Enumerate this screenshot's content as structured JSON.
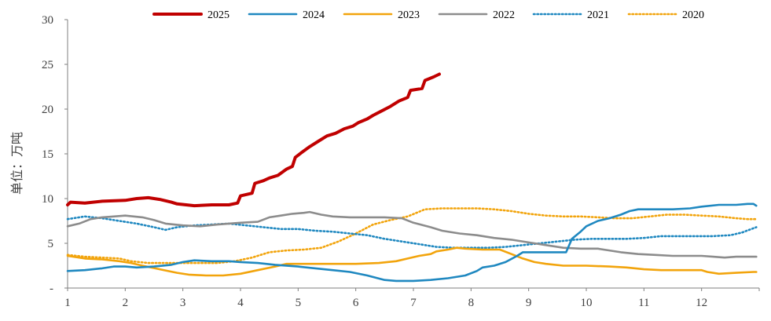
{
  "chart_data": {
    "type": "line",
    "title": "",
    "xlabel": "",
    "ylabel": "单位：万吨",
    "xlim": [
      1,
      13
    ],
    "ylim": [
      0,
      30
    ],
    "x_ticks": [
      1,
      2,
      3,
      4,
      5,
      6,
      7,
      8,
      9,
      10,
      11,
      12
    ],
    "y_ticks": [
      0,
      5,
      10,
      15,
      20,
      25,
      30
    ],
    "y_tick_labels": [
      "-",
      "5",
      "10",
      "15",
      "20",
      "25",
      "30"
    ],
    "grid": false,
    "legend_position": "top",
    "series": [
      {
        "name": "2025",
        "color": "#C00000",
        "style": "solid",
        "width": "thick",
        "points": [
          [
            1.0,
            9.3
          ],
          [
            1.05,
            9.6
          ],
          [
            1.3,
            9.5
          ],
          [
            1.6,
            9.7
          ],
          [
            2.0,
            9.8
          ],
          [
            2.2,
            10.0
          ],
          [
            2.4,
            10.1
          ],
          [
            2.6,
            9.9
          ],
          [
            2.8,
            9.6
          ],
          [
            2.9,
            9.4
          ],
          [
            3.2,
            9.2
          ],
          [
            3.5,
            9.3
          ],
          [
            3.8,
            9.3
          ],
          [
            3.95,
            9.5
          ],
          [
            4.0,
            10.3
          ],
          [
            4.2,
            10.6
          ],
          [
            4.25,
            11.7
          ],
          [
            4.4,
            12.0
          ],
          [
            4.5,
            12.3
          ],
          [
            4.65,
            12.6
          ],
          [
            4.8,
            13.3
          ],
          [
            4.9,
            13.6
          ],
          [
            4.95,
            14.6
          ],
          [
            5.05,
            15.1
          ],
          [
            5.2,
            15.8
          ],
          [
            5.35,
            16.4
          ],
          [
            5.5,
            17.0
          ],
          [
            5.65,
            17.3
          ],
          [
            5.8,
            17.8
          ],
          [
            5.95,
            18.1
          ],
          [
            6.05,
            18.5
          ],
          [
            6.2,
            18.9
          ],
          [
            6.3,
            19.3
          ],
          [
            6.45,
            19.8
          ],
          [
            6.6,
            20.3
          ],
          [
            6.75,
            20.9
          ],
          [
            6.9,
            21.3
          ],
          [
            6.95,
            22.1
          ],
          [
            7.15,
            22.3
          ],
          [
            7.2,
            23.2
          ],
          [
            7.35,
            23.6
          ],
          [
            7.45,
            23.9
          ]
        ]
      },
      {
        "name": "2024",
        "color": "#1F88C0",
        "style": "solid",
        "width": "medium",
        "points": [
          [
            1.0,
            1.9
          ],
          [
            1.3,
            2.0
          ],
          [
            1.6,
            2.2
          ],
          [
            1.8,
            2.4
          ],
          [
            2.0,
            2.4
          ],
          [
            2.2,
            2.3
          ],
          [
            2.5,
            2.4
          ],
          [
            2.8,
            2.6
          ],
          [
            3.0,
            2.9
          ],
          [
            3.2,
            3.1
          ],
          [
            3.5,
            3.0
          ],
          [
            3.8,
            3.0
          ],
          [
            4.0,
            2.9
          ],
          [
            4.3,
            2.8
          ],
          [
            4.6,
            2.6
          ],
          [
            5.0,
            2.4
          ],
          [
            5.3,
            2.2
          ],
          [
            5.6,
            2.0
          ],
          [
            5.9,
            1.8
          ],
          [
            6.2,
            1.4
          ],
          [
            6.5,
            0.9
          ],
          [
            6.7,
            0.8
          ],
          [
            7.0,
            0.8
          ],
          [
            7.3,
            0.9
          ],
          [
            7.6,
            1.1
          ],
          [
            7.9,
            1.4
          ],
          [
            8.1,
            1.9
          ],
          [
            8.2,
            2.3
          ],
          [
            8.4,
            2.5
          ],
          [
            8.6,
            2.9
          ],
          [
            8.8,
            3.6
          ],
          [
            8.9,
            4.0
          ],
          [
            9.2,
            4.0
          ],
          [
            9.5,
            4.0
          ],
          [
            9.65,
            4.0
          ],
          [
            9.75,
            5.5
          ],
          [
            9.9,
            6.3
          ],
          [
            10.0,
            6.9
          ],
          [
            10.2,
            7.5
          ],
          [
            10.4,
            7.8
          ],
          [
            10.6,
            8.2
          ],
          [
            10.75,
            8.6
          ],
          [
            10.9,
            8.8
          ],
          [
            11.2,
            8.8
          ],
          [
            11.5,
            8.8
          ],
          [
            11.8,
            8.9
          ],
          [
            12.0,
            9.1
          ],
          [
            12.3,
            9.3
          ],
          [
            12.6,
            9.3
          ],
          [
            12.8,
            9.4
          ],
          [
            12.9,
            9.4
          ],
          [
            12.95,
            9.2
          ]
        ]
      },
      {
        "name": "2023",
        "color": "#F2A40C",
        "style": "solid",
        "width": "medium",
        "points": [
          [
            1.0,
            3.6
          ],
          [
            1.3,
            3.3
          ],
          [
            1.6,
            3.2
          ],
          [
            1.9,
            3.0
          ],
          [
            2.1,
            2.8
          ],
          [
            2.3,
            2.5
          ],
          [
            2.6,
            2.1
          ],
          [
            2.9,
            1.7
          ],
          [
            3.1,
            1.5
          ],
          [
            3.4,
            1.4
          ],
          [
            3.7,
            1.4
          ],
          [
            4.0,
            1.6
          ],
          [
            4.3,
            2.0
          ],
          [
            4.6,
            2.4
          ],
          [
            4.8,
            2.7
          ],
          [
            5.2,
            2.7
          ],
          [
            5.6,
            2.7
          ],
          [
            6.0,
            2.7
          ],
          [
            6.4,
            2.8
          ],
          [
            6.7,
            3.0
          ],
          [
            6.9,
            3.3
          ],
          [
            7.1,
            3.6
          ],
          [
            7.3,
            3.8
          ],
          [
            7.4,
            4.1
          ],
          [
            7.6,
            4.3
          ],
          [
            7.75,
            4.5
          ],
          [
            7.9,
            4.4
          ],
          [
            8.2,
            4.3
          ],
          [
            8.5,
            4.3
          ],
          [
            8.7,
            3.8
          ],
          [
            8.9,
            3.3
          ],
          [
            9.1,
            2.9
          ],
          [
            9.3,
            2.7
          ],
          [
            9.6,
            2.5
          ],
          [
            10.0,
            2.5
          ],
          [
            10.4,
            2.4
          ],
          [
            10.7,
            2.3
          ],
          [
            11.0,
            2.1
          ],
          [
            11.3,
            2.0
          ],
          [
            11.6,
            2.0
          ],
          [
            11.8,
            2.0
          ],
          [
            12.0,
            2.0
          ],
          [
            12.1,
            1.8
          ],
          [
            12.3,
            1.6
          ],
          [
            12.6,
            1.7
          ],
          [
            12.9,
            1.8
          ],
          [
            12.95,
            1.8
          ]
        ]
      },
      {
        "name": "2022",
        "color": "#8C8C8C",
        "style": "solid",
        "width": "medium",
        "points": [
          [
            1.0,
            6.9
          ],
          [
            1.2,
            7.2
          ],
          [
            1.4,
            7.7
          ],
          [
            1.6,
            7.9
          ],
          [
            1.8,
            8.0
          ],
          [
            2.0,
            8.1
          ],
          [
            2.3,
            7.9
          ],
          [
            2.5,
            7.6
          ],
          [
            2.7,
            7.2
          ],
          [
            3.0,
            7.0
          ],
          [
            3.3,
            6.9
          ],
          [
            3.6,
            7.1
          ],
          [
            4.0,
            7.3
          ],
          [
            4.3,
            7.4
          ],
          [
            4.5,
            7.9
          ],
          [
            4.7,
            8.1
          ],
          [
            4.9,
            8.3
          ],
          [
            5.1,
            8.4
          ],
          [
            5.2,
            8.5
          ],
          [
            5.4,
            8.2
          ],
          [
            5.6,
            8.0
          ],
          [
            5.9,
            7.9
          ],
          [
            6.2,
            7.9
          ],
          [
            6.5,
            7.9
          ],
          [
            6.8,
            7.8
          ],
          [
            7.0,
            7.3
          ],
          [
            7.3,
            6.8
          ],
          [
            7.5,
            6.4
          ],
          [
            7.8,
            6.1
          ],
          [
            8.1,
            5.9
          ],
          [
            8.4,
            5.6
          ],
          [
            8.7,
            5.4
          ],
          [
            9.0,
            5.1
          ],
          [
            9.3,
            4.8
          ],
          [
            9.6,
            4.5
          ],
          [
            9.9,
            4.4
          ],
          [
            10.2,
            4.4
          ],
          [
            10.4,
            4.2
          ],
          [
            10.6,
            4.0
          ],
          [
            10.9,
            3.8
          ],
          [
            11.2,
            3.7
          ],
          [
            11.5,
            3.6
          ],
          [
            11.8,
            3.6
          ],
          [
            12.0,
            3.6
          ],
          [
            12.2,
            3.5
          ],
          [
            12.4,
            3.4
          ],
          [
            12.6,
            3.5
          ],
          [
            12.8,
            3.5
          ],
          [
            12.95,
            3.5
          ]
        ]
      },
      {
        "name": "2021",
        "color": "#1F88C0",
        "style": "dotted",
        "width": "medium",
        "points": [
          [
            1.0,
            7.7
          ],
          [
            1.3,
            8.0
          ],
          [
            1.6,
            7.8
          ],
          [
            1.9,
            7.5
          ],
          [
            2.2,
            7.2
          ],
          [
            2.5,
            6.8
          ],
          [
            2.7,
            6.5
          ],
          [
            2.9,
            6.8
          ],
          [
            3.2,
            7.0
          ],
          [
            3.5,
            7.1
          ],
          [
            3.8,
            7.2
          ],
          [
            4.1,
            7.0
          ],
          [
            4.4,
            6.8
          ],
          [
            4.7,
            6.6
          ],
          [
            5.0,
            6.6
          ],
          [
            5.3,
            6.4
          ],
          [
            5.6,
            6.3
          ],
          [
            5.9,
            6.1
          ],
          [
            6.2,
            5.9
          ],
          [
            6.5,
            5.5
          ],
          [
            6.8,
            5.2
          ],
          [
            7.1,
            4.9
          ],
          [
            7.4,
            4.6
          ],
          [
            7.7,
            4.5
          ],
          [
            8.0,
            4.5
          ],
          [
            8.3,
            4.5
          ],
          [
            8.6,
            4.6
          ],
          [
            8.9,
            4.8
          ],
          [
            9.2,
            5.0
          ],
          [
            9.5,
            5.2
          ],
          [
            9.8,
            5.4
          ],
          [
            10.1,
            5.5
          ],
          [
            10.4,
            5.5
          ],
          [
            10.7,
            5.5
          ],
          [
            11.0,
            5.6
          ],
          [
            11.3,
            5.8
          ],
          [
            11.6,
            5.8
          ],
          [
            11.9,
            5.8
          ],
          [
            12.2,
            5.8
          ],
          [
            12.5,
            5.9
          ],
          [
            12.7,
            6.2
          ],
          [
            12.95,
            6.8
          ]
        ]
      },
      {
        "name": "2020",
        "color": "#F2A40C",
        "style": "dotted",
        "width": "medium",
        "points": [
          [
            1.0,
            3.7
          ],
          [
            1.3,
            3.5
          ],
          [
            1.6,
            3.4
          ],
          [
            1.9,
            3.3
          ],
          [
            2.1,
            3.0
          ],
          [
            2.4,
            2.8
          ],
          [
            2.7,
            2.8
          ],
          [
            3.0,
            2.8
          ],
          [
            3.3,
            2.8
          ],
          [
            3.6,
            2.8
          ],
          [
            3.9,
            3.0
          ],
          [
            4.2,
            3.4
          ],
          [
            4.5,
            4.0
          ],
          [
            4.8,
            4.2
          ],
          [
            5.1,
            4.3
          ],
          [
            5.4,
            4.5
          ],
          [
            5.7,
            5.2
          ],
          [
            6.0,
            6.1
          ],
          [
            6.3,
            7.1
          ],
          [
            6.6,
            7.6
          ],
          [
            6.9,
            8.0
          ],
          [
            7.2,
            8.8
          ],
          [
            7.5,
            8.9
          ],
          [
            7.8,
            8.9
          ],
          [
            8.1,
            8.9
          ],
          [
            8.4,
            8.8
          ],
          [
            8.7,
            8.6
          ],
          [
            9.0,
            8.3
          ],
          [
            9.3,
            8.1
          ],
          [
            9.6,
            8.0
          ],
          [
            9.9,
            8.0
          ],
          [
            10.2,
            7.9
          ],
          [
            10.5,
            7.8
          ],
          [
            10.8,
            7.8
          ],
          [
            11.1,
            8.0
          ],
          [
            11.4,
            8.2
          ],
          [
            11.7,
            8.2
          ],
          [
            12.0,
            8.1
          ],
          [
            12.3,
            8.0
          ],
          [
            12.6,
            7.8
          ],
          [
            12.8,
            7.7
          ],
          [
            12.95,
            7.7
          ]
        ]
      }
    ]
  }
}
